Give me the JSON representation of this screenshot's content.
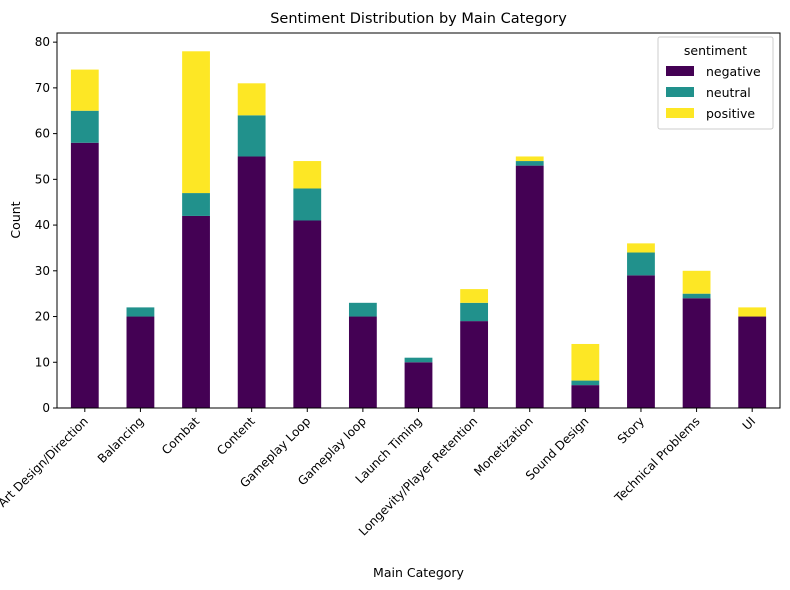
{
  "chart_data": {
    "type": "bar",
    "stacked": true,
    "title": "Sentiment Distribution by Main Category",
    "xlabel": "Main Category",
    "ylabel": "Count",
    "ylim": [
      0,
      82
    ],
    "yticks": [
      0,
      10,
      20,
      30,
      40,
      50,
      60,
      70,
      80
    ],
    "categories": [
      "Art Design/Direction",
      "Balancing",
      "Combat",
      "Content",
      "Gameplay Loop",
      "Gameplay loop",
      "Launch Timing",
      "Longevity/Player Retention",
      "Monetization",
      "Sound Design",
      "Story",
      "Technical Problems",
      "UI"
    ],
    "series": [
      {
        "name": "negative",
        "color": "#440154",
        "values": [
          58,
          20,
          42,
          55,
          41,
          20,
          10,
          19,
          53,
          5,
          29,
          24,
          20
        ]
      },
      {
        "name": "neutral",
        "color": "#21918c",
        "values": [
          7,
          2,
          5,
          9,
          7,
          3,
          1,
          4,
          1,
          1,
          5,
          1,
          0
        ]
      },
      {
        "name": "positive",
        "color": "#fde725",
        "values": [
          9,
          0,
          31,
          7,
          6,
          0,
          0,
          3,
          1,
          8,
          2,
          5,
          2
        ]
      }
    ],
    "legend": {
      "title": "sentiment",
      "position": "top-right"
    }
  }
}
